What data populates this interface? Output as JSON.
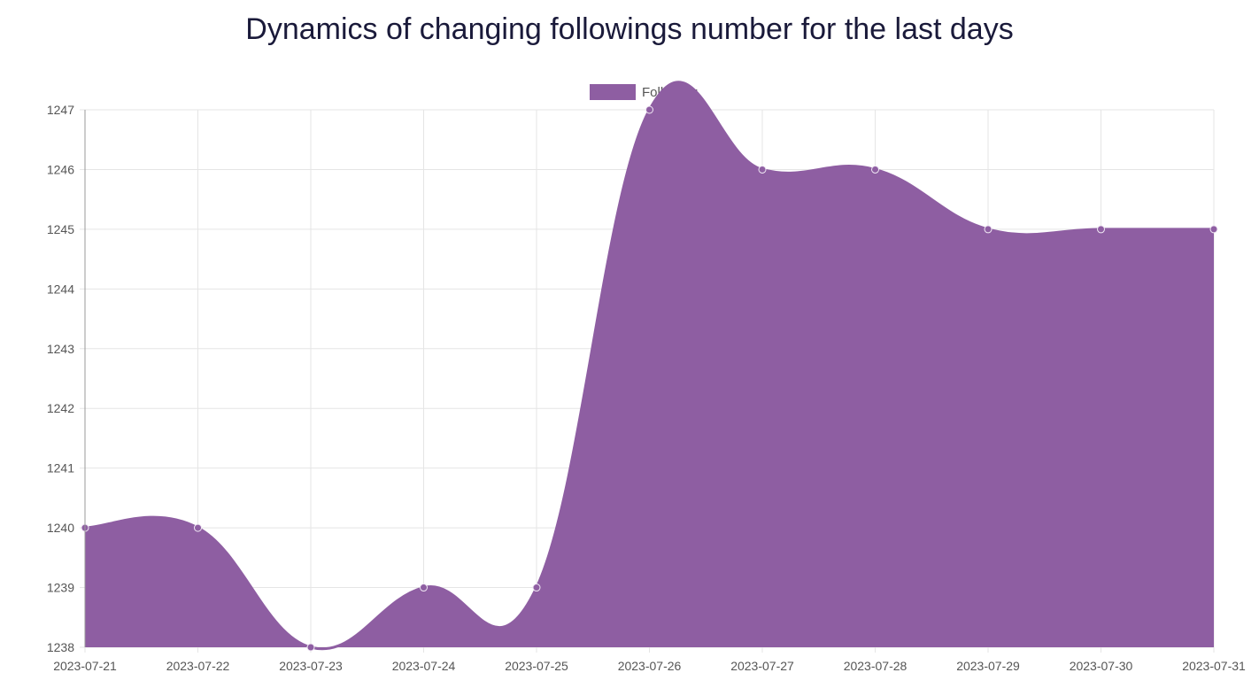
{
  "chart_data": {
    "type": "area",
    "title": "Dynamics of changing followings number for the last days",
    "xlabel": "",
    "ylabel": "",
    "x": [
      "2023-07-21",
      "2023-07-22",
      "2023-07-23",
      "2023-07-24",
      "2023-07-25",
      "2023-07-26",
      "2023-07-27",
      "2023-07-28",
      "2023-07-29",
      "2023-07-30",
      "2023-07-31"
    ],
    "series": [
      {
        "name": "Following",
        "values": [
          1240,
          1240,
          1238,
          1239,
          1239,
          1247,
          1246,
          1246,
          1245,
          1245,
          1245
        ]
      }
    ],
    "yticks": [
      1238,
      1239,
      1240,
      1241,
      1242,
      1243,
      1244,
      1245,
      1246,
      1247
    ],
    "ylim": [
      1238,
      1247
    ],
    "grid": true,
    "legend_position": "top",
    "colors": {
      "fill": "#8e5ea2",
      "line": "#8e5ea2",
      "grid": "#e5e5e5",
      "axis": "#999999"
    }
  }
}
